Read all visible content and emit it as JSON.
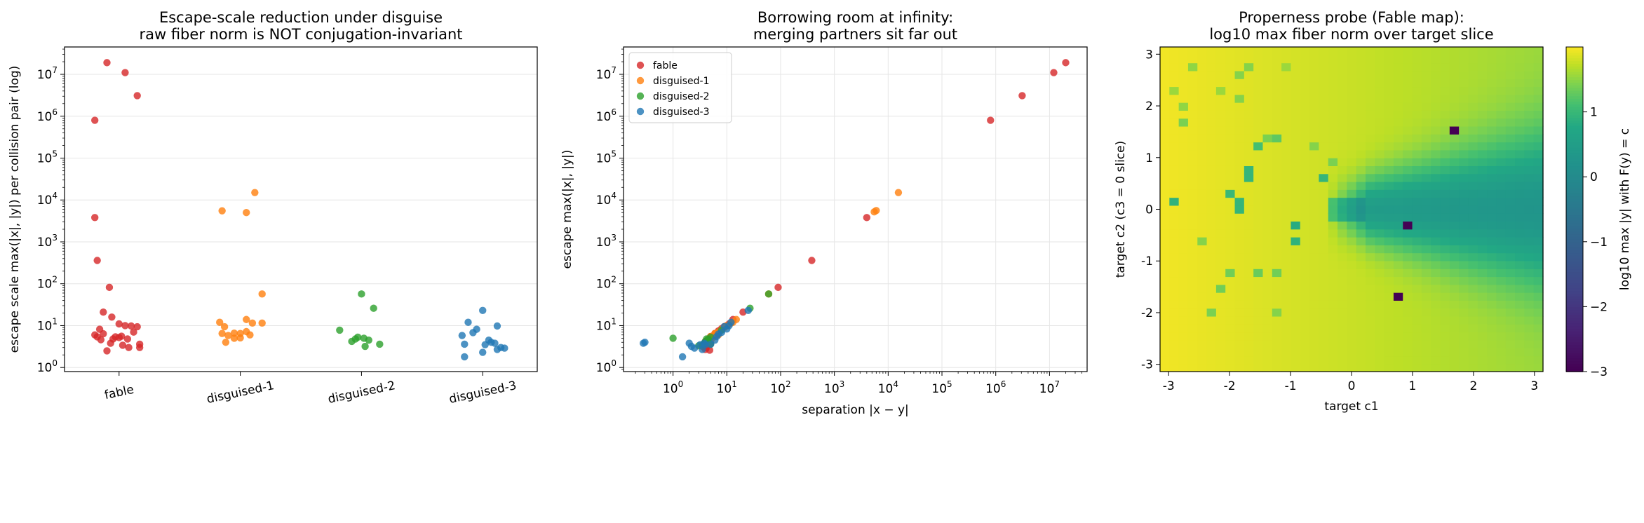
{
  "figure": {
    "panels": [
      "escape-scale-panel",
      "borrowing-room-panel",
      "properness-panel"
    ]
  },
  "chart_data": [
    {
      "type": "scatter",
      "title": "Escape-scale reduction under disguise\nraw fiber norm is NOT conjugation-invariant",
      "xlabel": "",
      "ylabel": "escape scale  max(|x|, |y|) per collision pair  (log)",
      "yscale": "log",
      "ylim": [
        0.8,
        45000000
      ],
      "categories": [
        "fable",
        "disguised-1",
        "disguised-2",
        "disguised-3"
      ],
      "yticks": [
        1,
        10,
        100,
        1000,
        10000,
        100000,
        1000000,
        10000000
      ],
      "ytick_labels": [
        "10^0",
        "10^1",
        "10^2",
        "10^3",
        "10^4",
        "10^5",
        "10^6",
        "10^7"
      ],
      "grid": "y",
      "series": [
        {
          "category": "fable",
          "color": "#d62728",
          "points": [
            [
              -0.2,
              800000
            ],
            [
              -0.1,
              19000000
            ],
            [
              0.05,
              11000000
            ],
            [
              0.15,
              3100000
            ],
            [
              -0.2,
              3800
            ],
            [
              -0.18,
              360
            ],
            [
              -0.08,
              82
            ],
            [
              -0.13,
              21
            ],
            [
              0.0,
              11
            ],
            [
              0.05,
              10
            ],
            [
              0.1,
              9.8
            ],
            [
              0.15,
              9.4
            ],
            [
              -0.06,
              16
            ],
            [
              -0.16,
              8.2
            ],
            [
              -0.2,
              6.0
            ],
            [
              -0.15,
              4.6
            ],
            [
              -0.1,
              2.5
            ],
            [
              -0.05,
              4.8
            ],
            [
              0.0,
              5.2
            ],
            [
              0.03,
              3.4
            ],
            [
              0.08,
              3.0
            ],
            [
              0.12,
              7.0
            ],
            [
              0.17,
              3.6
            ],
            [
              0.17,
              3.0
            ],
            [
              -0.13,
              6.4
            ],
            [
              -0.07,
              3.8
            ],
            [
              0.02,
              5.6
            ],
            [
              0.07,
              4.8
            ],
            [
              -0.03,
              5.4
            ],
            [
              -0.18,
              5.4
            ]
          ]
        },
        {
          "category": "disguised-1",
          "color": "#ff7f0e",
          "points": [
            [
              -0.15,
              5500
            ],
            [
              0.05,
              5000
            ],
            [
              0.12,
              15000
            ],
            [
              0.18,
              57
            ],
            [
              -0.17,
              12
            ],
            [
              -0.13,
              9.4
            ],
            [
              -0.05,
              6.6
            ],
            [
              0.05,
              14
            ],
            [
              0.1,
              11.5
            ],
            [
              0.18,
              11.5
            ],
            [
              -0.15,
              6.5
            ],
            [
              -0.1,
              5.8
            ],
            [
              -0.05,
              5.0
            ],
            [
              0.0,
              6.5
            ],
            [
              0.05,
              7.2
            ],
            [
              -0.12,
              4.0
            ],
            [
              0.0,
              5.1
            ],
            [
              0.08,
              6.0
            ]
          ]
        },
        {
          "category": "disguised-2",
          "color": "#2ca02c",
          "points": [
            [
              -0.18,
              7.8
            ],
            [
              0.0,
              57
            ],
            [
              0.1,
              26
            ],
            [
              -0.08,
              4.2
            ],
            [
              -0.03,
              5.3
            ],
            [
              0.02,
              5.0
            ],
            [
              0.03,
              3.2
            ],
            [
              0.06,
              4.5
            ],
            [
              0.15,
              3.6
            ],
            [
              -0.05,
              4.8
            ]
          ]
        },
        {
          "category": "disguised-3",
          "color": "#1f77b4",
          "points": [
            [
              -0.12,
              12
            ],
            [
              0.0,
              23
            ],
            [
              -0.05,
              8.2
            ],
            [
              0.12,
              9.8
            ],
            [
              -0.17,
              5.8
            ],
            [
              -0.08,
              6.8
            ],
            [
              0.05,
              4.5
            ],
            [
              0.1,
              3.8
            ],
            [
              -0.15,
              3.6
            ],
            [
              0.02,
              3.5
            ],
            [
              0.07,
              4.0
            ],
            [
              0.15,
              3.0
            ],
            [
              0.18,
              2.9
            ],
            [
              0.12,
              2.7
            ],
            [
              -0.15,
              1.8
            ],
            [
              0.0,
              2.3
            ]
          ]
        }
      ]
    },
    {
      "type": "scatter",
      "title": "Borrowing room at infinity:\nmerging partners sit far out",
      "xlabel": "separation |x − y|",
      "ylabel": "escape max(|x|, |y|)",
      "xscale": "log",
      "yscale": "log",
      "xlim": [
        0.12,
        50000000
      ],
      "ylim": [
        0.8,
        45000000
      ],
      "xticks": [
        1,
        10,
        100,
        1000,
        10000,
        100000,
        1000000,
        10000000
      ],
      "yticks": [
        1,
        10,
        100,
        1000,
        10000,
        100000,
        1000000,
        10000000
      ],
      "grid": "both",
      "legend": {
        "placement": "top-left",
        "entries": [
          "fable",
          "disguised-1",
          "disguised-2",
          "disguised-3"
        ]
      },
      "series": [
        {
          "name": "fable",
          "color": "#d62728",
          "points": [
            [
              800000,
              800000
            ],
            [
              20000000,
              19000000
            ],
            [
              12000000,
              11000000
            ],
            [
              3100000,
              3100000
            ],
            [
              4000,
              3800
            ],
            [
              380,
              360
            ],
            [
              90,
              82
            ],
            [
              20,
              21
            ],
            [
              11,
              11
            ],
            [
              10,
              10
            ],
            [
              9,
              9.5
            ],
            [
              8,
              8.5
            ],
            [
              13,
              14
            ],
            [
              7,
              7.5
            ],
            [
              6,
              6.5
            ],
            [
              5,
              5.5
            ],
            [
              4,
              4.2
            ],
            [
              4.5,
              4.6
            ],
            [
              5.2,
              5.0
            ],
            [
              3.5,
              3.2
            ],
            [
              3.8,
              3.3
            ],
            [
              4.2,
              3.0
            ],
            [
              6.5,
              6.0
            ],
            [
              5.0,
              3.8
            ],
            [
              4.0,
              2.7
            ],
            [
              4.8,
              2.6
            ]
          ]
        },
        {
          "name": "disguised-1",
          "color": "#ff7f0e",
          "points": [
            [
              5500,
              5200
            ],
            [
              6000,
              5600
            ],
            [
              15500,
              15000
            ],
            [
              60,
              57
            ],
            [
              13,
              12
            ],
            [
              10,
              10
            ],
            [
              7,
              7
            ],
            [
              15,
              14
            ],
            [
              12,
              11.5
            ],
            [
              8,
              8
            ],
            [
              6,
              6.5
            ],
            [
              5,
              5.5
            ],
            [
              4.5,
              4.6
            ],
            [
              5.5,
              5.2
            ],
            [
              6,
              6.4
            ],
            [
              9,
              9
            ],
            [
              7,
              6
            ],
            [
              5,
              4
            ]
          ]
        },
        {
          "name": "disguised-2",
          "color": "#2ca02c",
          "points": [
            [
              60,
              57
            ],
            [
              27,
              26
            ],
            [
              8,
              7.8
            ],
            [
              5,
              5.3
            ],
            [
              4.5,
              4.7
            ],
            [
              4,
              4.2
            ],
            [
              3.8,
              3.8
            ],
            [
              3.5,
              3.4
            ],
            [
              1,
              5
            ],
            [
              3,
              3.3
            ],
            [
              4.2,
              4.8
            ],
            [
              5,
              3.6
            ]
          ]
        },
        {
          "name": "disguised-3",
          "color": "#1f77b4",
          "points": [
            [
              0.3,
              4
            ],
            [
              0.28,
              3.8
            ],
            [
              1.5,
              1.8
            ],
            [
              2,
              3.8
            ],
            [
              2.2,
              3.2
            ],
            [
              2.5,
              2.9
            ],
            [
              3.2,
              3.5
            ],
            [
              3.5,
              2.7
            ],
            [
              4,
              3.5
            ],
            [
              6,
              4.5
            ],
            [
              7,
              6.3
            ],
            [
              8,
              6.9
            ],
            [
              10,
              8.3
            ],
            [
              11,
              10
            ],
            [
              12,
              12
            ],
            [
              25,
              23
            ],
            [
              3.8,
              3.8
            ],
            [
              5,
              3.6
            ],
            [
              9,
              9.5
            ],
            [
              6.5,
              5.5
            ]
          ]
        }
      ]
    },
    {
      "type": "heatmap",
      "title": "Properness probe (Fable map):\nlog10 max fiber norm over target slice",
      "xlabel": "target c1",
      "ylabel": "target c2  (c3 = 0 slice)",
      "xlim": [
        -3.14,
        3.14
      ],
      "ylim": [
        -3.14,
        3.14
      ],
      "xticks": [
        -3,
        -2,
        -1,
        0,
        1,
        2,
        3
      ],
      "yticks": [
        -3,
        -2,
        -1,
        0,
        1,
        2,
        3
      ],
      "grid_size": [
        41,
        41
      ],
      "colormap": "viridis",
      "colorbar": {
        "label": "log10 max |y| with F(y) = c",
        "range": [
          -3,
          2.0
        ],
        "ticks": [
          -3,
          -2,
          -1,
          0,
          1
        ]
      },
      "field": "Value is about 1.95 near c1 = -3 and falls smoothly to about 1.55 near c1 = 3. For c1 > 0 there is a trough centred on c2 = 0 (about 0.1 to 0.5), ringed by contours that bulge out to |c2| of about 1.3 on the right. Scattered single cells of about 0.6 to 1.2 fall to the left of c1 = -0.3.",
      "base_left": 1.95,
      "base_right": 1.55,
      "hot_cells": [
        [
          -2.95,
          0.08,
          0.9
        ],
        [
          -2.85,
          2.28,
          1.55
        ],
        [
          -2.7,
          1.75,
          1.4
        ],
        [
          -2.7,
          2.05,
          1.5
        ],
        [
          -2.55,
          2.7,
          1.5
        ],
        [
          -2.5,
          -0.55,
          1.45
        ],
        [
          -2.35,
          -1.95,
          1.4
        ],
        [
          -2.2,
          2.3,
          1.55
        ],
        [
          -2.2,
          -1.5,
          1.35
        ],
        [
          -2.05,
          0.3,
          1.0
        ],
        [
          -2.05,
          -1.2,
          1.35
        ],
        [
          -1.9,
          2.65,
          1.45
        ],
        [
          -1.9,
          2.2,
          1.45
        ],
        [
          -1.9,
          0.05,
          0.95
        ],
        [
          -1.9,
          0.15,
          0.95
        ],
        [
          -1.75,
          0.55,
          0.95
        ],
        [
          -1.75,
          0.7,
          0.95
        ],
        [
          -1.75,
          2.75,
          1.45
        ],
        [
          -1.6,
          -1.2,
          1.3
        ],
        [
          -1.6,
          1.15,
          1.1
        ],
        [
          -1.45,
          1.45,
          1.4
        ],
        [
          -1.3,
          1.35,
          1.1
        ],
        [
          -1.2,
          -1.2,
          1.35
        ],
        [
          -1.2,
          -1.95,
          1.45
        ],
        [
          -1.2,
          1.35,
          1.25
        ],
        [
          -0.9,
          -0.3,
          0.8
        ],
        [
          -0.9,
          -0.65,
          0.9
        ],
        [
          -1.05,
          2.8,
          1.55
        ],
        [
          -0.6,
          1.2,
          1.45
        ],
        [
          -0.45,
          0.55,
          0.95
        ],
        [
          -0.3,
          0.95,
          1.4
        ]
      ],
      "cold_cells": [
        [
          1.7,
          1.55,
          -3
        ],
        [
          0.85,
          -0.3,
          -3
        ],
        [
          0.8,
          -1.75,
          -3
        ]
      ]
    }
  ]
}
